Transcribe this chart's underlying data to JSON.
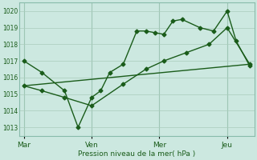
{
  "background_color": "#cce8e0",
  "grid_color": "#aaccbb",
  "line_color": "#1a5c1a",
  "text_color": "#1a5c1a",
  "xlabel": "Pression niveau de la mer( hPa )",
  "ylim": [
    1012.5,
    1020.5
  ],
  "yticks": [
    1013,
    1014,
    1015,
    1016,
    1017,
    1018,
    1019,
    1020
  ],
  "xtick_labels": [
    "Mar",
    "Ven",
    "Mer",
    "Jeu"
  ],
  "xtick_positions": [
    0,
    30,
    60,
    90
  ],
  "vline_positions": [
    0,
    30,
    60,
    90
  ],
  "xlim": [
    -2,
    102
  ],
  "line1_x": [
    0,
    8,
    18,
    24,
    30,
    34,
    38,
    44,
    50,
    54,
    58,
    62,
    66,
    70,
    78,
    84,
    90,
    94,
    100
  ],
  "line1_y": [
    1017.0,
    1016.3,
    1015.2,
    1013.0,
    1014.8,
    1015.2,
    1016.3,
    1016.8,
    1018.8,
    1018.8,
    1018.7,
    1018.6,
    1019.4,
    1019.5,
    1019.0,
    1018.8,
    1020.0,
    1018.2,
    1016.7
  ],
  "line2_x": [
    0,
    8,
    18,
    30,
    44,
    54,
    62,
    72,
    82,
    90,
    100
  ],
  "line2_y": [
    1015.5,
    1015.2,
    1014.8,
    1014.3,
    1015.6,
    1016.5,
    1017.0,
    1017.5,
    1018.0,
    1019.0,
    1016.8
  ],
  "line3_x": [
    0,
    100
  ],
  "line3_y": [
    1015.5,
    1016.8
  ],
  "marker": "D",
  "markersize": 2.5,
  "linewidth": 1.0
}
